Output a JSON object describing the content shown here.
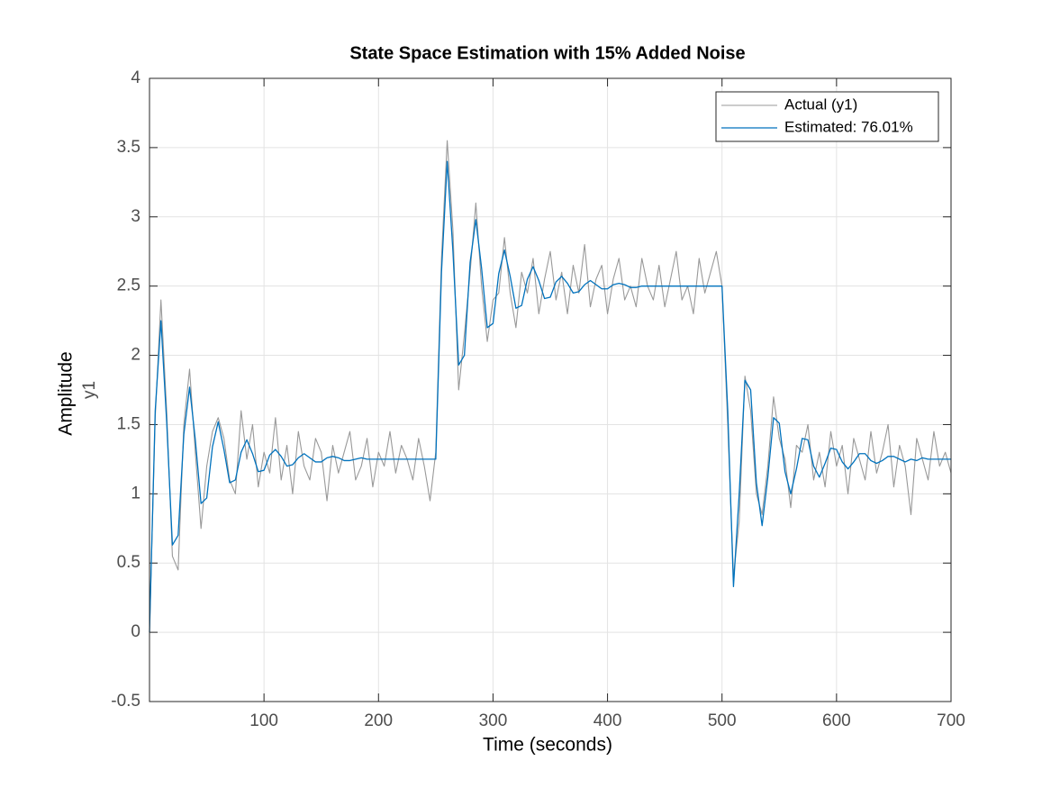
{
  "chart_data": {
    "type": "line",
    "title": "State Space Estimation with 15% Added Noise",
    "xlabel": "Time (seconds)",
    "ylabel": "Amplitude",
    "ylabel2": "y1",
    "xlim": [
      0,
      700
    ],
    "xticks": [
      100,
      200,
      300,
      400,
      500,
      600,
      700
    ],
    "ylim": [
      -0.5,
      4
    ],
    "yticks": [
      -0.5,
      0,
      0.5,
      1,
      1.5,
      2,
      2.5,
      3,
      3.5,
      4
    ],
    "grid": true,
    "legend": "northeast",
    "x": [
      0,
      5,
      10,
      15,
      20,
      25,
      30,
      35,
      40,
      45,
      50,
      55,
      60,
      65,
      70,
      75,
      80,
      85,
      90,
      95,
      100,
      105,
      110,
      115,
      120,
      125,
      130,
      135,
      140,
      145,
      150,
      155,
      160,
      165,
      170,
      175,
      180,
      185,
      190,
      195,
      200,
      205,
      210,
      215,
      220,
      225,
      230,
      235,
      240,
      245,
      250,
      255,
      260,
      265,
      270,
      275,
      280,
      285,
      290,
      295,
      300,
      305,
      310,
      315,
      320,
      325,
      330,
      335,
      340,
      345,
      350,
      355,
      360,
      365,
      370,
      375,
      380,
      385,
      390,
      395,
      400,
      405,
      410,
      415,
      420,
      425,
      430,
      435,
      440,
      445,
      450,
      455,
      460,
      465,
      470,
      475,
      480,
      485,
      490,
      495,
      500,
      505,
      510,
      515,
      520,
      525,
      530,
      535,
      540,
      545,
      550,
      555,
      560,
      565,
      570,
      575,
      580,
      585,
      590,
      595,
      600,
      605,
      610,
      615,
      620,
      625,
      630,
      635,
      640,
      645,
      650,
      655,
      660,
      665,
      670,
      675,
      680,
      685,
      690,
      695,
      700
    ],
    "series": [
      {
        "name": "Actual (y1)",
        "color": "#999999",
        "width": 1.1,
        "values": [
          0,
          1.55,
          2.4,
          1.6,
          0.55,
          0.45,
          1.5,
          1.9,
          1.3,
          0.75,
          1.2,
          1.45,
          1.55,
          1.4,
          1.1,
          1.0,
          1.6,
          1.25,
          1.5,
          1.05,
          1.3,
          1.15,
          1.55,
          1.1,
          1.35,
          1.0,
          1.45,
          1.2,
          1.1,
          1.4,
          1.3,
          0.95,
          1.35,
          1.15,
          1.3,
          1.45,
          1.1,
          1.2,
          1.4,
          1.05,
          1.3,
          1.2,
          1.45,
          1.15,
          1.35,
          1.25,
          1.1,
          1.4,
          1.2,
          0.95,
          1.3,
          2.7,
          3.55,
          2.9,
          1.75,
          2.15,
          2.6,
          3.1,
          2.5,
          2.1,
          2.4,
          2.45,
          2.85,
          2.45,
          2.2,
          2.6,
          2.45,
          2.7,
          2.3,
          2.55,
          2.75,
          2.4,
          2.6,
          2.3,
          2.65,
          2.45,
          2.8,
          2.35,
          2.55,
          2.65,
          2.3,
          2.55,
          2.7,
          2.4,
          2.5,
          2.35,
          2.7,
          2.5,
          2.4,
          2.65,
          2.35,
          2.55,
          2.75,
          2.4,
          2.5,
          2.3,
          2.7,
          2.45,
          2.6,
          2.75,
          2.5,
          1.5,
          0.4,
          0.8,
          1.85,
          1.6,
          1.0,
          0.85,
          1.2,
          1.7,
          1.4,
          1.25,
          0.9,
          1.35,
          1.3,
          1.5,
          1.1,
          1.3,
          1.05,
          1.45,
          1.2,
          1.35,
          1.0,
          1.4,
          1.25,
          1.1,
          1.45,
          1.15,
          1.3,
          1.5,
          1.05,
          1.35,
          1.2,
          0.85,
          1.4,
          1.25,
          1.1,
          1.45,
          1.2,
          1.3,
          1.15
        ]
      },
      {
        "name": "Estimated: 76.01%",
        "color": "#0072bd",
        "width": 1.3,
        "values": [
          0,
          1.6,
          2.25,
          1.52,
          0.63,
          0.7,
          1.43,
          1.77,
          1.39,
          0.93,
          0.97,
          1.34,
          1.52,
          1.32,
          1.08,
          1.1,
          1.3,
          1.39,
          1.29,
          1.16,
          1.17,
          1.28,
          1.32,
          1.27,
          1.2,
          1.21,
          1.26,
          1.29,
          1.26,
          1.23,
          1.23,
          1.26,
          1.27,
          1.26,
          1.24,
          1.24,
          1.25,
          1.26,
          1.25,
          1.25,
          1.25,
          1.25,
          1.25,
          1.25,
          1.25,
          1.25,
          1.25,
          1.25,
          1.25,
          1.25,
          1.25,
          2.6,
          3.4,
          2.75,
          1.93,
          2.0,
          2.67,
          2.98,
          2.63,
          2.2,
          2.23,
          2.59,
          2.76,
          2.57,
          2.34,
          2.36,
          2.55,
          2.64,
          2.54,
          2.41,
          2.42,
          2.53,
          2.57,
          2.52,
          2.45,
          2.46,
          2.51,
          2.54,
          2.51,
          2.48,
          2.48,
          2.51,
          2.52,
          2.51,
          2.49,
          2.49,
          2.5,
          2.5,
          2.5,
          2.5,
          2.5,
          2.5,
          2.5,
          2.5,
          2.5,
          2.5,
          2.5,
          2.5,
          2.5,
          2.5,
          2.5,
          1.6,
          0.33,
          1.0,
          1.82,
          1.75,
          1.08,
          0.77,
          1.12,
          1.55,
          1.51,
          1.16,
          1.0,
          1.18,
          1.4,
          1.39,
          1.2,
          1.12,
          1.22,
          1.33,
          1.32,
          1.23,
          1.18,
          1.23,
          1.29,
          1.29,
          1.24,
          1.22,
          1.24,
          1.27,
          1.27,
          1.25,
          1.23,
          1.25,
          1.24,
          1.26,
          1.25,
          1.25,
          1.25,
          1.25,
          1.25
        ]
      }
    ]
  }
}
